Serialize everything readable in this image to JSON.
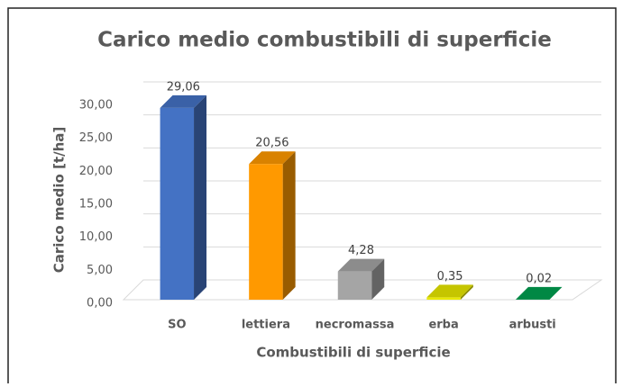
{
  "chart_data": {
    "type": "bar3d",
    "title": "Carico medio combustibili di superficie",
    "x_label": "Combustibili di superficie",
    "y_label": "Carico medio [t/ha]",
    "categories": [
      "SO",
      "lettiera",
      "necromassa",
      "erba",
      "arbusti"
    ],
    "values": [
      29.06,
      20.56,
      4.28,
      0.35,
      0.02
    ],
    "value_labels": [
      "29,06",
      "20,56",
      "4,28",
      "0,35",
      "0,02"
    ],
    "colors": [
      "#4472c4",
      "#ff9900",
      "#a5a5a5",
      "#e8e800",
      "#00a050"
    ],
    "ylim": [
      0,
      30
    ],
    "yticks": [
      {
        "value": 0,
        "label": "0,00"
      },
      {
        "value": 5,
        "label": "5,00"
      },
      {
        "value": 10,
        "label": "10,00"
      },
      {
        "value": 15,
        "label": "15,00"
      },
      {
        "value": 20,
        "label": "20,00"
      },
      {
        "value": 25,
        "label": "25,00"
      },
      {
        "value": 30,
        "label": "30,00"
      }
    ],
    "grid": true
  }
}
